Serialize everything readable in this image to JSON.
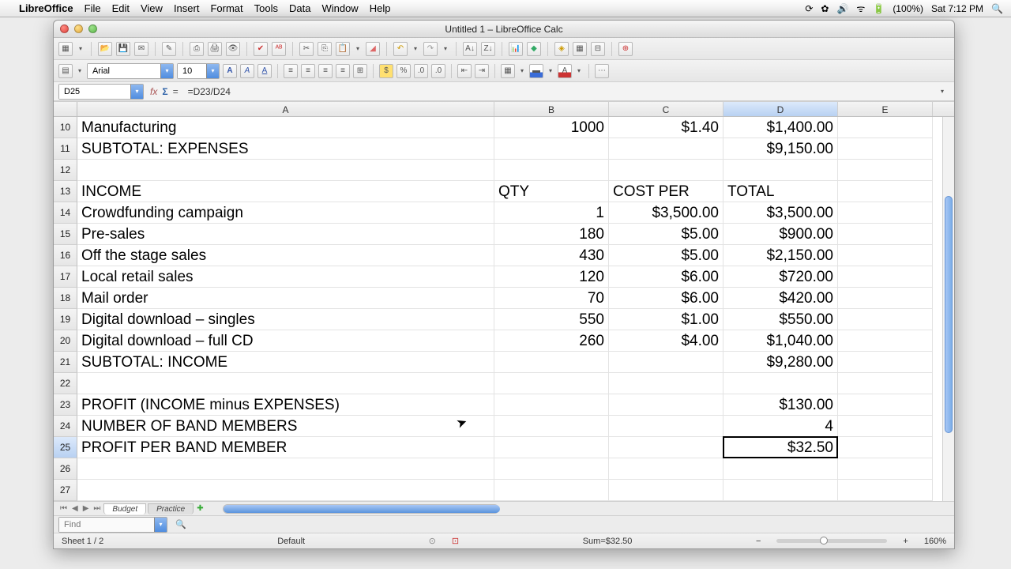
{
  "mac": {
    "app": "LibreOffice",
    "menus": [
      "File",
      "Edit",
      "View",
      "Insert",
      "Format",
      "Tools",
      "Data",
      "Window",
      "Help"
    ],
    "battery": "(100%)",
    "clock": "Sat 7:12 PM"
  },
  "window": {
    "title": "Untitled 1 – LibreOffice Calc"
  },
  "format": {
    "font": "Arial",
    "size": "10"
  },
  "formula": {
    "cellref": "D25",
    "value": "=D23/D24"
  },
  "columns": [
    "A",
    "B",
    "C",
    "D",
    "E"
  ],
  "colWidths": {
    "A": 528,
    "B": 145,
    "C": 145,
    "D": 145,
    "E": 120
  },
  "selected": {
    "row": 25,
    "col": "D"
  },
  "startRow": 10,
  "rows": [
    {
      "n": 10,
      "A": "Manufacturing",
      "B": "1000",
      "C": "$1.40",
      "D": "$1,400.00"
    },
    {
      "n": 11,
      "A": "SUBTOTAL: EXPENSES",
      "B": "",
      "C": "",
      "D": "$9,150.00"
    },
    {
      "n": 12,
      "A": "",
      "B": "",
      "C": "",
      "D": ""
    },
    {
      "n": 13,
      "A": "INCOME",
      "B": "QTY",
      "C": "COST PER",
      "D": "TOTAL",
      "header": true
    },
    {
      "n": 14,
      "A": "Crowdfunding campaign",
      "B": "1",
      "C": "$3,500.00",
      "D": "$3,500.00"
    },
    {
      "n": 15,
      "A": "Pre-sales",
      "B": "180",
      "C": "$5.00",
      "D": "$900.00"
    },
    {
      "n": 16,
      "A": "Off the stage sales",
      "B": "430",
      "C": "$5.00",
      "D": "$2,150.00"
    },
    {
      "n": 17,
      "A": "Local retail sales",
      "B": "120",
      "C": "$6.00",
      "D": "$720.00"
    },
    {
      "n": 18,
      "A": "Mail order",
      "B": "70",
      "C": "$6.00",
      "D": "$420.00"
    },
    {
      "n": 19,
      "A": "Digital download – singles",
      "B": "550",
      "C": "$1.00",
      "D": "$550.00"
    },
    {
      "n": 20,
      "A": "Digital download – full CD",
      "B": "260",
      "C": "$4.00",
      "D": "$1,040.00"
    },
    {
      "n": 21,
      "A": "SUBTOTAL: INCOME",
      "B": "",
      "C": "",
      "D": "$9,280.00"
    },
    {
      "n": 22,
      "A": "",
      "B": "",
      "C": "",
      "D": ""
    },
    {
      "n": 23,
      "A": "PROFIT (INCOME minus EXPENSES)",
      "B": "",
      "C": "",
      "D": "$130.00"
    },
    {
      "n": 24,
      "A": "NUMBER OF BAND MEMBERS",
      "B": "",
      "C": "",
      "D": "4"
    },
    {
      "n": 25,
      "A": "PROFIT PER BAND MEMBER",
      "B": "",
      "C": "",
      "D": "$32.50"
    },
    {
      "n": 26,
      "A": "",
      "B": "",
      "C": "",
      "D": ""
    },
    {
      "n": 27,
      "A": "",
      "B": "",
      "C": "",
      "D": ""
    }
  ],
  "tabs": {
    "active": "Budget",
    "list": [
      "Budget",
      "Practice"
    ]
  },
  "find": {
    "placeholder": "Find"
  },
  "status": {
    "sheet": "Sheet 1 / 2",
    "style": "Default",
    "sum": "Sum=$32.50",
    "zoom": "160%"
  }
}
